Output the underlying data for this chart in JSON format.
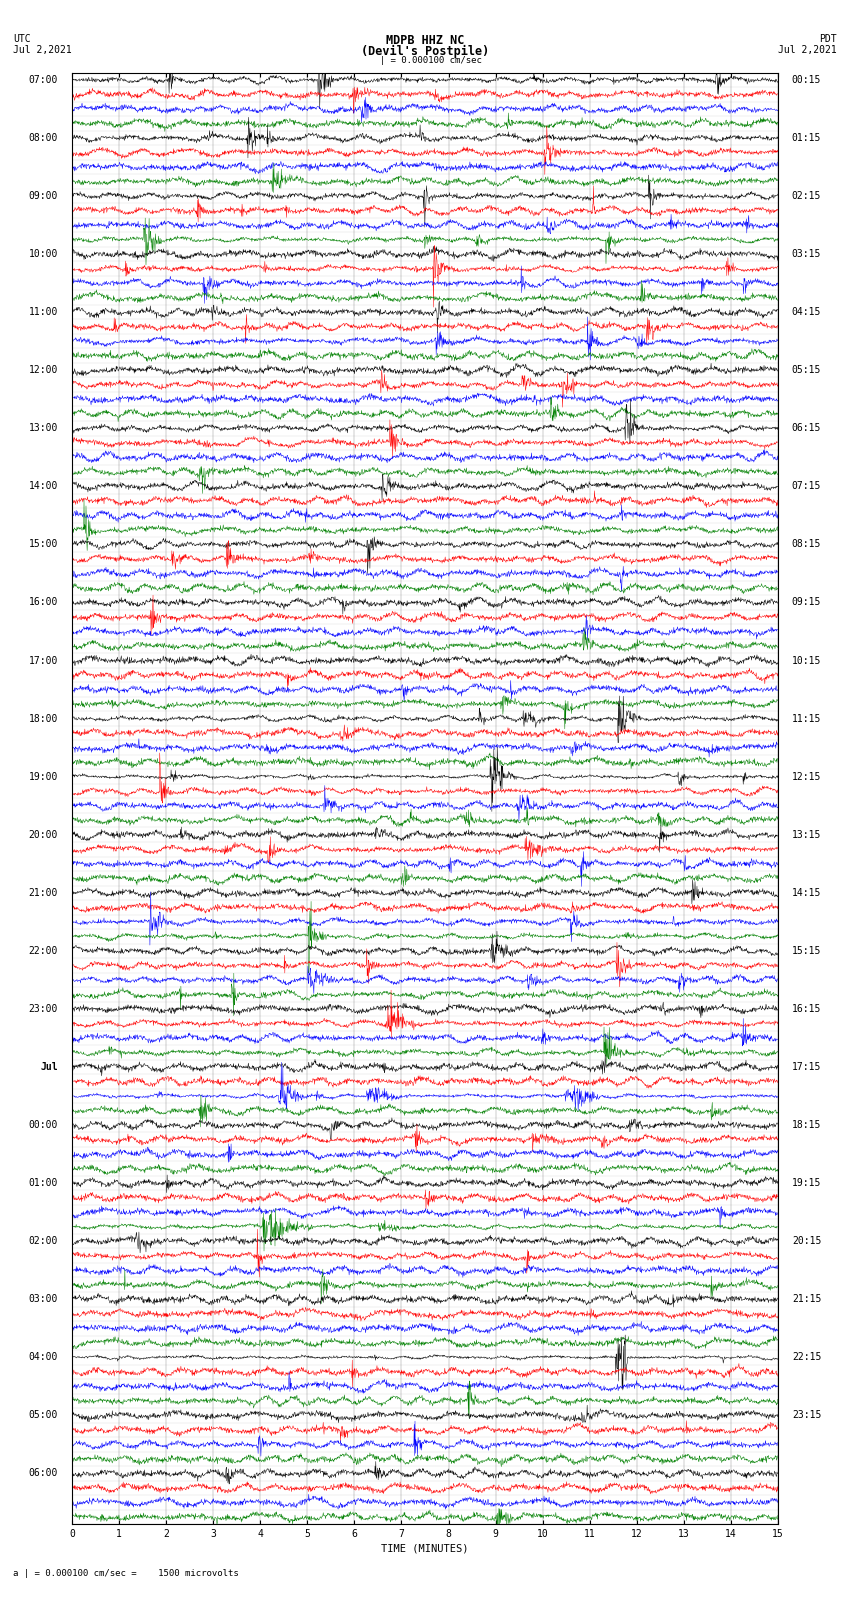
{
  "title_line1": "MDPB HHZ NC",
  "title_line2": "(Devil's Postpile)",
  "scale_text": "= 0.000100 cm/sec",
  "scale_label": "a |",
  "scale_footnote": "= 0.000100 cm/sec =    1500 microvolts",
  "utc_label": "UTC",
  "utc_date": "Jul 2,2021",
  "pdt_label": "PDT",
  "pdt_date": "Jul 2,2021",
  "xlabel": "TIME (MINUTES)",
  "colors": [
    "black",
    "red",
    "blue",
    "green"
  ],
  "left_labels": [
    "07:00",
    "08:00",
    "09:00",
    "10:00",
    "11:00",
    "12:00",
    "13:00",
    "14:00",
    "15:00",
    "16:00",
    "17:00",
    "18:00",
    "19:00",
    "20:00",
    "21:00",
    "22:00",
    "23:00",
    "Jul",
    "00:00",
    "01:00",
    "02:00",
    "03:00",
    "04:00",
    "05:00",
    "06:00"
  ],
  "right_labels": [
    "00:15",
    "01:15",
    "02:15",
    "03:15",
    "04:15",
    "05:15",
    "06:15",
    "07:15",
    "08:15",
    "09:15",
    "10:15",
    "11:15",
    "12:15",
    "13:15",
    "14:15",
    "15:15",
    "16:15",
    "17:15",
    "18:15",
    "19:15",
    "20:15",
    "21:15",
    "22:15",
    "23:15"
  ],
  "n_hour_groups": 25,
  "traces_per_group": 4,
  "samples_per_row": 1800,
  "fig_width": 8.5,
  "fig_height": 16.13,
  "bg_color": "white",
  "trace_linewidth": 0.35,
  "font_size_title": 8.5,
  "font_size_labels": 7,
  "font_size_ticks": 7,
  "xmin": 0,
  "xmax": 15,
  "xticks": [
    0,
    1,
    2,
    3,
    4,
    5,
    6,
    7,
    8,
    9,
    10,
    11,
    12,
    13,
    14,
    15
  ],
  "amplitude_profile": [
    0.06,
    0.07,
    0.07,
    0.07,
    0.07,
    0.07,
    0.07,
    0.07,
    0.06,
    0.06,
    0.07,
    0.07,
    0.07,
    0.08,
    0.1,
    0.12,
    0.14,
    0.18,
    0.22,
    0.25,
    0.28,
    0.3,
    0.25,
    0.22,
    0.18,
    0.16,
    0.14,
    0.15,
    0.16,
    0.18,
    0.2,
    0.22,
    0.24,
    0.26,
    0.28,
    0.3,
    0.32,
    0.34,
    0.32,
    0.3,
    0.28,
    0.25,
    0.22,
    0.2,
    0.18,
    0.16,
    0.14,
    0.15,
    0.17,
    0.2,
    0.22,
    0.25,
    0.27,
    0.3,
    0.28,
    0.26,
    0.24,
    0.22,
    0.2,
    0.18,
    0.17,
    0.18,
    0.2,
    0.22,
    0.24,
    0.26,
    0.28,
    0.3,
    0.32,
    0.28,
    0.24,
    0.2,
    0.18,
    0.2,
    0.22,
    0.24,
    0.26,
    0.28,
    0.35,
    0.4,
    0.5,
    0.45,
    0.35,
    0.25,
    0.2,
    0.18,
    0.16,
    0.14,
    0.14,
    0.16,
    0.18,
    0.2,
    0.14,
    0.12,
    0.1,
    0.1
  ]
}
